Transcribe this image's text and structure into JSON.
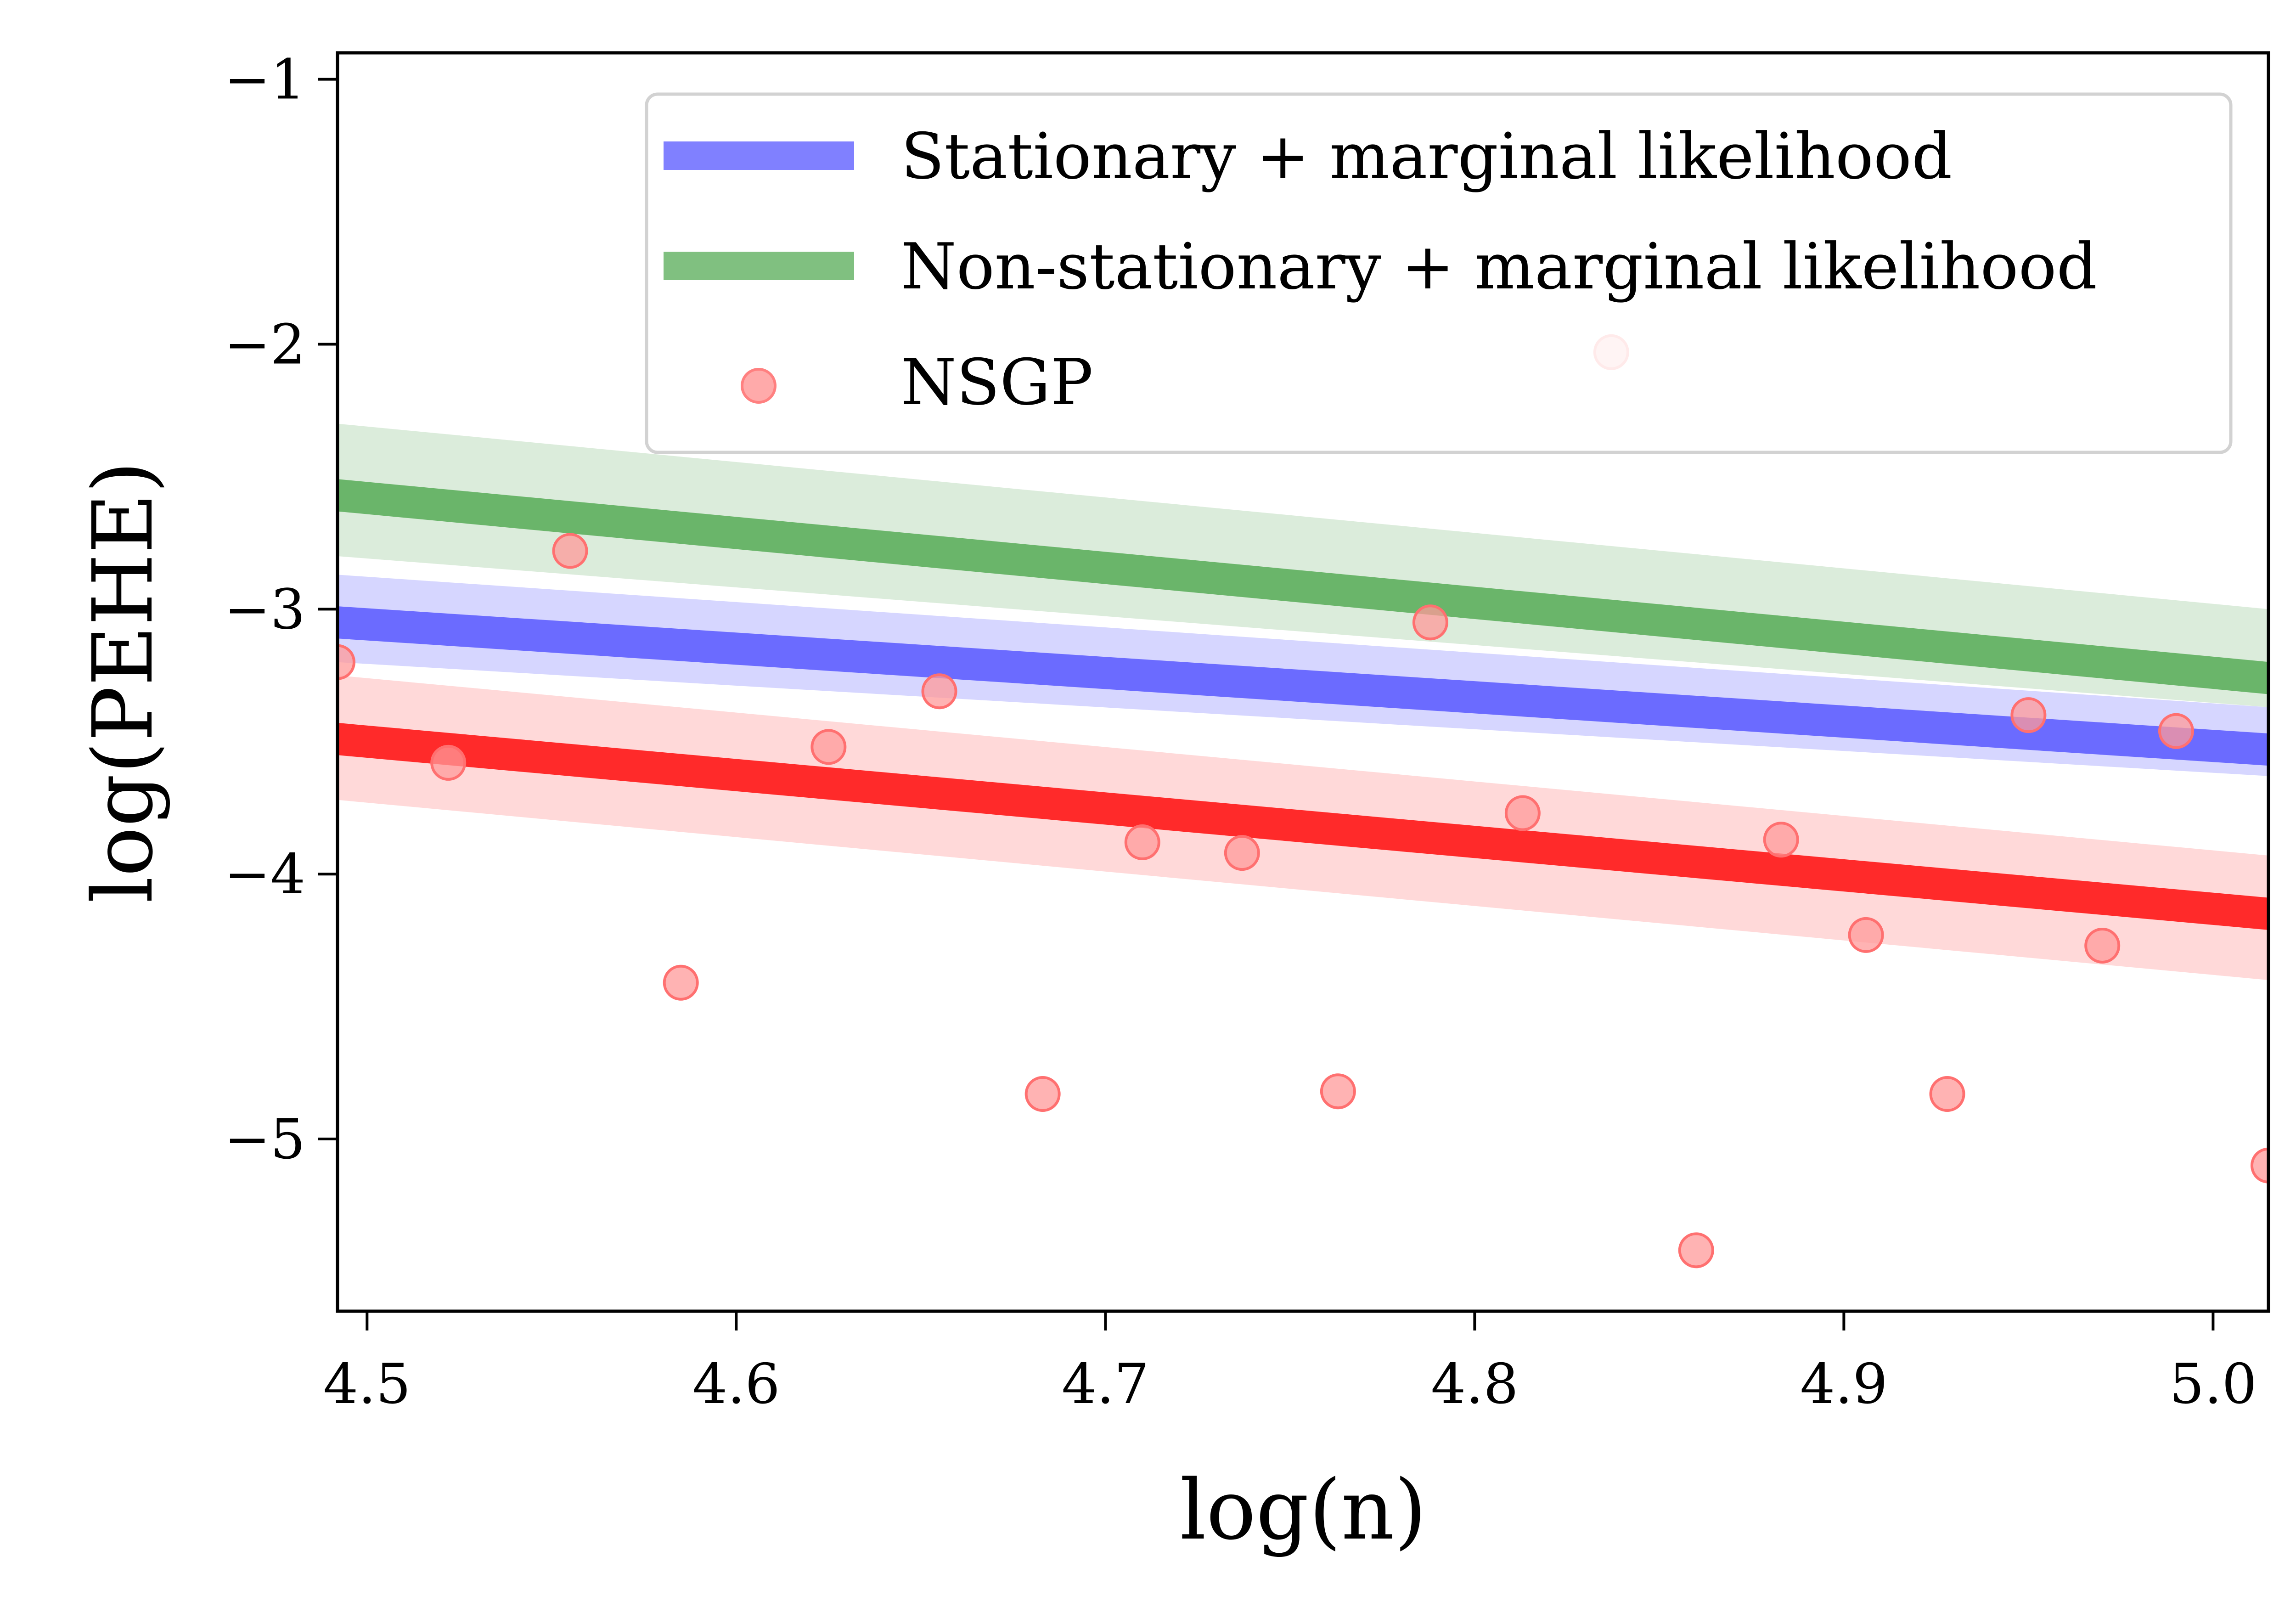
{
  "chart_data": {
    "type": "scatter",
    "title": "",
    "xlabel": "log(n)",
    "ylabel": "log(PEHE)",
    "xlim": [
      4.492,
      5.015
    ],
    "ylim": [
      -5.65,
      -0.9
    ],
    "xticks": [
      4.5,
      4.6,
      4.7,
      4.8,
      4.9,
      5.0
    ],
    "xtick_labels": [
      "4.5",
      "4.6",
      "4.7",
      "4.8",
      "4.9",
      "5.0"
    ],
    "yticks": [
      -1,
      -2,
      -3,
      -4,
      -5
    ],
    "ytick_labels": [
      "−1",
      "−2",
      "−3",
      "−4",
      "−5"
    ],
    "grid": false,
    "legend_position": "top-right",
    "series": [
      {
        "name": "Stationary + marginal likelihood",
        "kind": "trend",
        "color": "#6b6bff",
        "band_color": "#c8c8ff",
        "x": [
          4.492,
          5.015
        ],
        "y": [
          -3.05,
          -3.53
        ],
        "band_upper": [
          -2.87,
          -3.37
        ],
        "band_lower": [
          -3.2,
          -3.63
        ]
      },
      {
        "name": "Non-stationary + marginal likelihood",
        "kind": "trend",
        "color": "#6ab56a",
        "band_color": "#cfe5cf",
        "x": [
          4.492,
          5.015
        ],
        "y": [
          -2.57,
          -3.26
        ],
        "band_upper": [
          -2.3,
          -3.0
        ],
        "band_lower": [
          -2.8,
          -3.37
        ]
      },
      {
        "name": "",
        "kind": "trend",
        "color": "#ff2a2a",
        "band_color": "#ffcccc",
        "x": [
          4.492,
          5.015
        ],
        "y": [
          -3.49,
          -4.15
        ],
        "band_upper": [
          -3.25,
          -3.93
        ],
        "band_lower": [
          -3.72,
          -4.4
        ]
      },
      {
        "name": "NSGP",
        "kind": "points",
        "color": "#ff9a9a",
        "edge_color": "#ff7070",
        "x": [
          4.492,
          4.522,
          4.555,
          4.585,
          4.625,
          4.655,
          4.683,
          4.71,
          4.737,
          4.763,
          4.788,
          4.813,
          4.837,
          4.86,
          4.883,
          4.906,
          4.928,
          4.95,
          4.97,
          4.99,
          5.015
        ],
        "y": [
          -3.2,
          -3.58,
          -2.78,
          -4.41,
          -3.52,
          -3.31,
          -4.83,
          -3.88,
          -3.92,
          -4.82,
          -3.05,
          -3.77,
          -2.03,
          -5.42,
          -3.87,
          -4.23,
          -4.83,
          -3.4,
          -4.27,
          -3.46,
          -5.1
        ]
      }
    ]
  }
}
